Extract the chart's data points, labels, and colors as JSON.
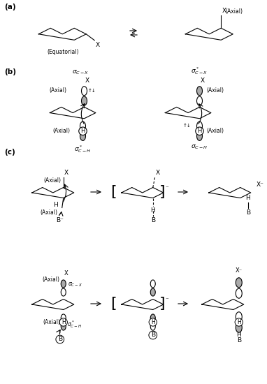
{
  "bg_color": "#ffffff",
  "lw": 0.8,
  "fs": 6.5,
  "fs_bold": 7.5,
  "fs_label": 5.5,
  "sections": [
    "(a)",
    "(b)",
    "(c)"
  ]
}
